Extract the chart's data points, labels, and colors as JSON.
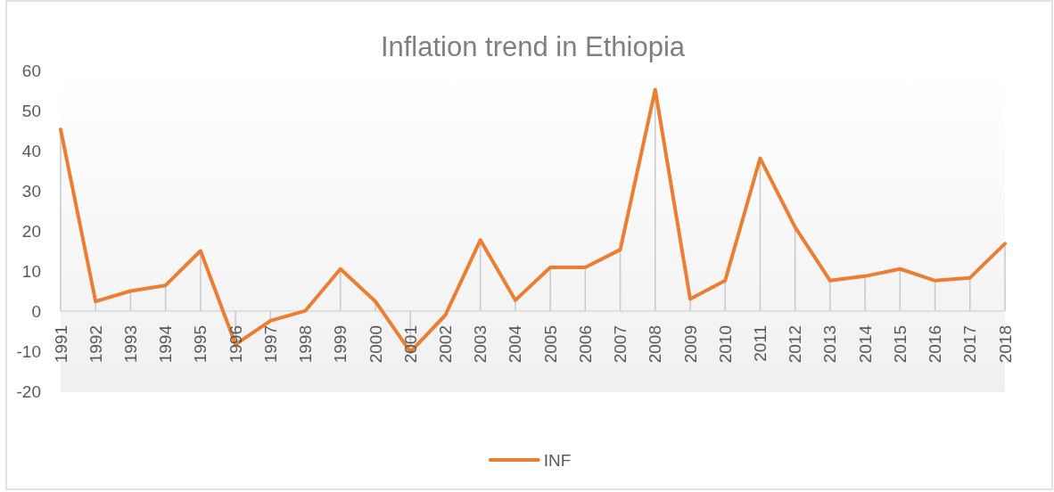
{
  "chart_data": {
    "type": "line",
    "title": "Inflation trend in Ethiopia",
    "categories": [
      "1991",
      "1992",
      "1993",
      "1994",
      "1995",
      "1996",
      "1997",
      "1998",
      "1999",
      "2000",
      "2001",
      "2002",
      "2003",
      "2004",
      "2005",
      "2006",
      "2007",
      "2008",
      "2009",
      "2010",
      "2011",
      "2012",
      "2013",
      "2014",
      "2015",
      "2016",
      "2017",
      "2018"
    ],
    "series": [
      {
        "name": "INF",
        "color": "#ed7d31",
        "values": [
          45.3,
          2.4,
          5.0,
          6.4,
          15.0,
          -8.3,
          -2.4,
          0.1,
          10.5,
          2.4,
          -10.2,
          -1.0,
          17.7,
          2.7,
          10.9,
          10.9,
          15.3,
          55.2,
          3.0,
          7.6,
          38.1,
          20.9,
          7.6,
          8.7,
          10.5,
          7.6,
          8.3,
          16.8
        ]
      }
    ],
    "ylim": [
      -20,
      60
    ],
    "yticks": [
      -20,
      -10,
      0,
      10,
      20,
      30,
      40,
      50,
      60
    ],
    "legend": "bottom"
  }
}
